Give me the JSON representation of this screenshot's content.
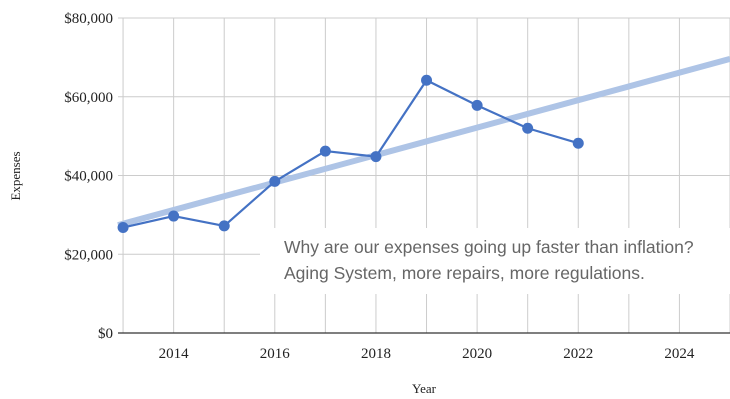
{
  "chart_data": {
    "type": "line",
    "xlabel": "Year",
    "ylabel": "Expenses",
    "xlim": [
      2012.9,
      2025
    ],
    "ylim": [
      0,
      80000
    ],
    "x_ticks": [
      2014,
      2016,
      2018,
      2020,
      2022,
      2024
    ],
    "x_tick_labels": [
      "2014",
      "2016",
      "2018",
      "2020",
      "2022",
      "2024"
    ],
    "y_ticks": [
      0,
      20000,
      40000,
      60000,
      80000
    ],
    "y_tick_labels": [
      "$0",
      "$20,000",
      "$40,000",
      "$60,000",
      "$80,000"
    ],
    "grid": true,
    "series": [
      {
        "x": [
          2013,
          2014,
          2015,
          2016,
          2017,
          2018,
          2019,
          2020,
          2021,
          2022
        ],
        "values": [
          26800,
          29700,
          27200,
          38500,
          46200,
          44800,
          64200,
          57800,
          52000,
          48200
        ],
        "color": "#4472c4"
      }
    ],
    "trendline": {
      "x": [
        2012.9,
        2025
      ],
      "values": [
        27400,
        69600
      ],
      "color": "#aec4e6"
    },
    "annotations": [
      "Why are our expenses going up faster than inflation?",
      "Aging System, more repairs, more regulations."
    ]
  }
}
